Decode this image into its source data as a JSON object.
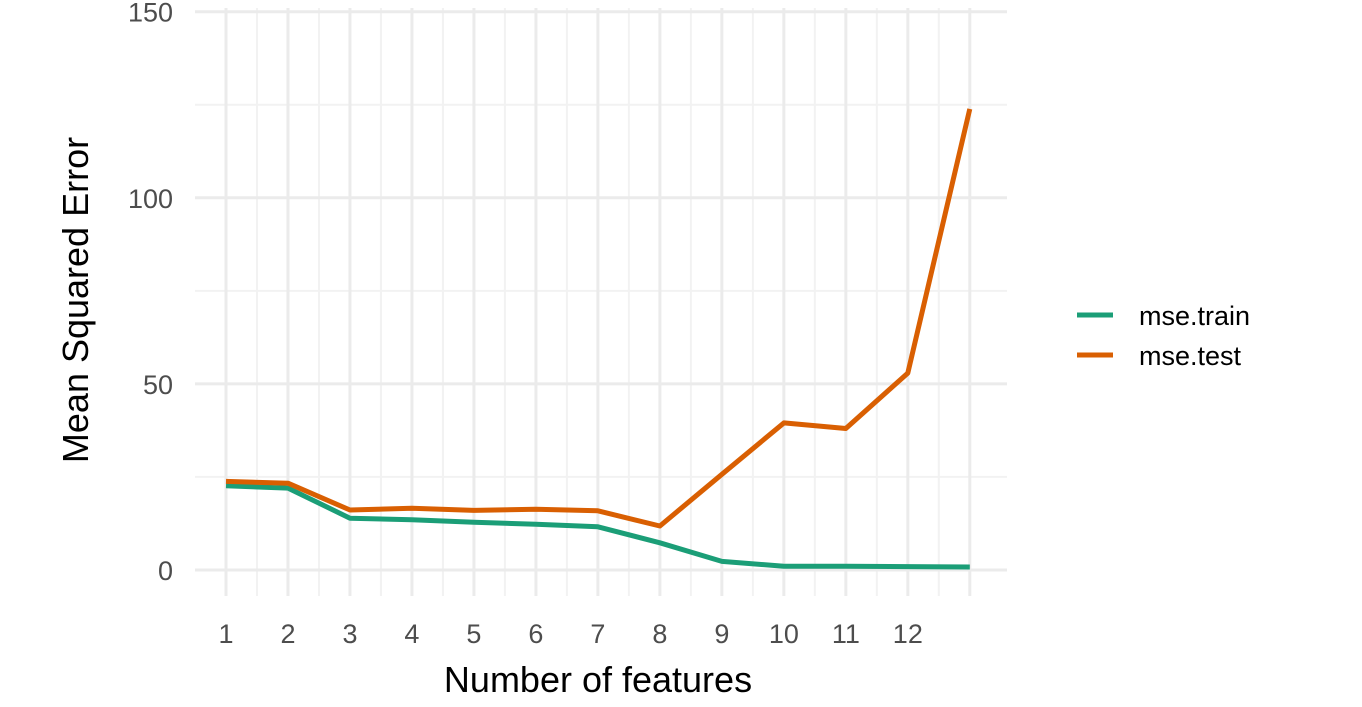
{
  "chart_data": {
    "type": "line",
    "title": "",
    "xlabel": "Number of features",
    "ylabel": "Mean Squared Error",
    "x": [
      1,
      2,
      3,
      4,
      5,
      6,
      7,
      8,
      9,
      10,
      11,
      12,
      13
    ],
    "x_tick_labels": [
      "1",
      "2",
      "3",
      "4",
      "5",
      "6",
      "7",
      "8",
      "9",
      "10",
      "11",
      "12"
    ],
    "y_ticks": [
      0,
      50,
      100,
      150
    ],
    "y_tick_labels": [
      "0",
      "50",
      "100",
      "150"
    ],
    "xlim": [
      0.5,
      13.6
    ],
    "ylim": [
      -7,
      151
    ],
    "grid": true,
    "legend_position": "right",
    "series": [
      {
        "name": "mse.train",
        "color": "#1b9e77",
        "values": [
          22.6,
          22.0,
          13.9,
          13.5,
          12.8,
          12.3,
          11.6,
          7.3,
          2.3,
          1.0,
          1.0,
          0.9,
          0.8
        ]
      },
      {
        "name": "mse.test",
        "color": "#d95f02",
        "values": [
          23.8,
          23.3,
          16.1,
          16.6,
          16.0,
          16.3,
          15.9,
          11.8,
          25.7,
          39.5,
          38.0,
          52.9,
          123.9
        ]
      }
    ]
  }
}
